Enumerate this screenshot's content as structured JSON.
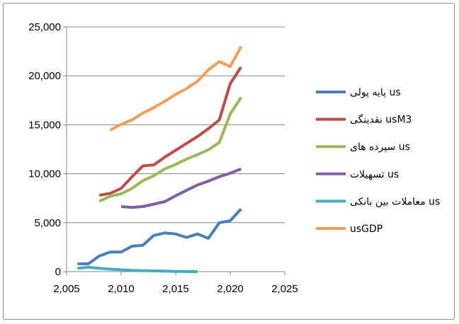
{
  "chart_data": {
    "type": "line",
    "title": "",
    "xlabel": "",
    "ylabel": "",
    "xlim": [
      2005,
      2025
    ],
    "ylim": [
      0,
      25000
    ],
    "x_ticks": [
      "2,005",
      "2,010",
      "2,015",
      "2,020",
      "2,025"
    ],
    "y_ticks": [
      "0",
      "5,000",
      "10,000",
      "15,000",
      "20,000",
      "25,000"
    ],
    "grid": "horizontal",
    "legend_position": "right",
    "series": [
      {
        "name": "پایه پولی us",
        "color": "#4a7ebb",
        "points": [
          [
            2006,
            800
          ],
          [
            2007,
            800
          ],
          [
            2008,
            1600
          ],
          [
            2009,
            2000
          ],
          [
            2010,
            2000
          ],
          [
            2011,
            2600
          ],
          [
            2012,
            2700
          ],
          [
            2013,
            3700
          ],
          [
            2014,
            3950
          ],
          [
            2015,
            3850
          ],
          [
            2016,
            3500
          ],
          [
            2017,
            3850
          ],
          [
            2018,
            3400
          ],
          [
            2019,
            5000
          ],
          [
            2020,
            5200
          ],
          [
            2021,
            6400
          ]
        ]
      },
      {
        "name": "نقدینگی usM3",
        "color": "#be4b48",
        "points": [
          [
            2008,
            7800
          ],
          [
            2009,
            8000
          ],
          [
            2010,
            8500
          ],
          [
            2011,
            9700
          ],
          [
            2012,
            10800
          ],
          [
            2013,
            10900
          ],
          [
            2014,
            11700
          ],
          [
            2015,
            12400
          ],
          [
            2016,
            13100
          ],
          [
            2017,
            13800
          ],
          [
            2018,
            14600
          ],
          [
            2019,
            15500
          ],
          [
            2020,
            19200
          ],
          [
            2021,
            20900
          ]
        ]
      },
      {
        "name": "سپرده های us",
        "color": "#98b954",
        "points": [
          [
            2008,
            7200
          ],
          [
            2009,
            7700
          ],
          [
            2010,
            7950
          ],
          [
            2011,
            8500
          ],
          [
            2012,
            9300
          ],
          [
            2013,
            9800
          ],
          [
            2014,
            10500
          ],
          [
            2015,
            10950
          ],
          [
            2016,
            11500
          ],
          [
            2017,
            11950
          ],
          [
            2018,
            12450
          ],
          [
            2019,
            13200
          ],
          [
            2020,
            16100
          ],
          [
            2021,
            17800
          ]
        ]
      },
      {
        "name": "تسهیلات us",
        "color": "#7d60a0",
        "points": [
          [
            2010,
            6650
          ],
          [
            2011,
            6550
          ],
          [
            2012,
            6650
          ],
          [
            2013,
            6900
          ],
          [
            2014,
            7150
          ],
          [
            2015,
            7750
          ],
          [
            2016,
            8300
          ],
          [
            2017,
            8850
          ],
          [
            2018,
            9250
          ],
          [
            2019,
            9700
          ],
          [
            2020,
            10050
          ],
          [
            2021,
            10500
          ]
        ]
      },
      {
        "name": "معاملات بین بانکی us",
        "color": "#46aac5",
        "points": [
          [
            2006,
            350
          ],
          [
            2007,
            450
          ],
          [
            2008,
            350
          ],
          [
            2009,
            250
          ],
          [
            2010,
            200
          ],
          [
            2011,
            120
          ],
          [
            2012,
            100
          ],
          [
            2013,
            80
          ],
          [
            2014,
            60
          ],
          [
            2015,
            20
          ],
          [
            2016,
            10
          ],
          [
            2017,
            0
          ]
        ]
      },
      {
        "name": "usGDP",
        "color": "#f59d56",
        "points": [
          [
            2009,
            14450
          ],
          [
            2010,
            15050
          ],
          [
            2011,
            15500
          ],
          [
            2012,
            16200
          ],
          [
            2013,
            16750
          ],
          [
            2014,
            17400
          ],
          [
            2015,
            18100
          ],
          [
            2016,
            18700
          ],
          [
            2017,
            19450
          ],
          [
            2018,
            20600
          ],
          [
            2019,
            21450
          ],
          [
            2020,
            20950
          ],
          [
            2021,
            23000
          ]
        ]
      }
    ]
  }
}
